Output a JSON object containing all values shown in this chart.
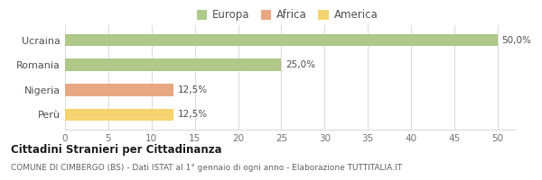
{
  "categories": [
    "Ucraina",
    "Romania",
    "Nigeria",
    "Perù"
  ],
  "values": [
    50.0,
    25.0,
    12.5,
    12.5
  ],
  "bar_colors": [
    "#aec98a",
    "#aec98a",
    "#e8a882",
    "#f5d36e"
  ],
  "bar_labels": [
    "50,0%",
    "25,0%",
    "12,5%",
    "12,5%"
  ],
  "xlim": [
    0,
    52
  ],
  "xticks": [
    0,
    5,
    10,
    15,
    20,
    25,
    30,
    35,
    40,
    45,
    50
  ],
  "legend_items": [
    {
      "label": "Europa",
      "color": "#aec98a"
    },
    {
      "label": "Africa",
      "color": "#e8a882"
    },
    {
      "label": "America",
      "color": "#f5d36e"
    }
  ],
  "title_bold": "Cittadini Stranieri per Cittadinanza",
  "subtitle": "COMUNE DI CIMBERGO (BS) - Dati ISTAT al 1° gennaio di ogni anno - Elaborazione TUTTITALIA.IT",
  "bg_color": "#ffffff",
  "grid_color": "#dddddd",
  "bar_height": 0.5
}
